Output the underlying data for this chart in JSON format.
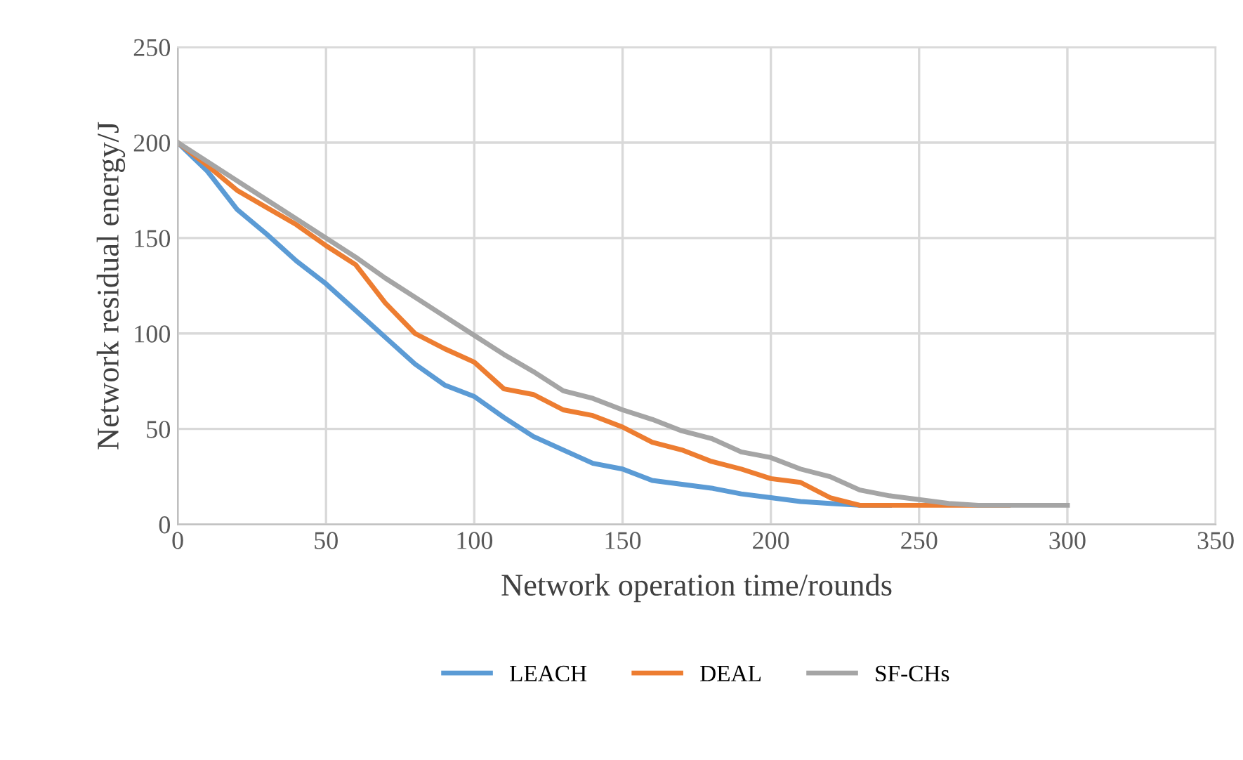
{
  "chart_data": {
    "type": "line",
    "xlabel": "Network operation time/rounds",
    "ylabel": "Network residual energy/J",
    "x": [
      0,
      10,
      20,
      30,
      40,
      50,
      60,
      70,
      80,
      90,
      100,
      110,
      120,
      130,
      140,
      150,
      160,
      170,
      180,
      190,
      200,
      210,
      220,
      230,
      240,
      250,
      260,
      270,
      280,
      290,
      300
    ],
    "series": [
      {
        "name": "LEACH",
        "color": "#5b9bd5",
        "values": [
          200,
          185,
          165,
          152,
          138,
          126,
          112,
          98,
          84,
          73,
          67,
          56,
          46,
          39,
          32,
          29,
          23,
          21,
          19,
          16,
          14,
          12,
          11,
          10,
          10,
          null,
          null,
          null,
          null,
          null,
          null
        ]
      },
      {
        "name": "DEAL",
        "color": "#ed7d31",
        "values": [
          200,
          188,
          175,
          166,
          157,
          146,
          136,
          116,
          100,
          92,
          85,
          71,
          68,
          60,
          57,
          51,
          43,
          39,
          33,
          29,
          24,
          22,
          14,
          10,
          10,
          10,
          10,
          10,
          10,
          null,
          null
        ]
      },
      {
        "name": "SF-CHs",
        "color": "#a5a5a5",
        "values": [
          200,
          190,
          180,
          170,
          160,
          150,
          140,
          129,
          119,
          109,
          99,
          89,
          80,
          70,
          66,
          60,
          55,
          49,
          45,
          38,
          35,
          29,
          25,
          18,
          15,
          13,
          11,
          10,
          10,
          10,
          10
        ]
      }
    ],
    "xlim": [
      0,
      350
    ],
    "xticks": [
      0,
      50,
      100,
      150,
      200,
      250,
      300,
      350
    ],
    "ylim": [
      0,
      250
    ],
    "yticks": [
      0,
      50,
      100,
      150,
      200,
      250
    ],
    "grid": true,
    "legend": "bottom",
    "marker": "none",
    "line_style": "solid"
  }
}
